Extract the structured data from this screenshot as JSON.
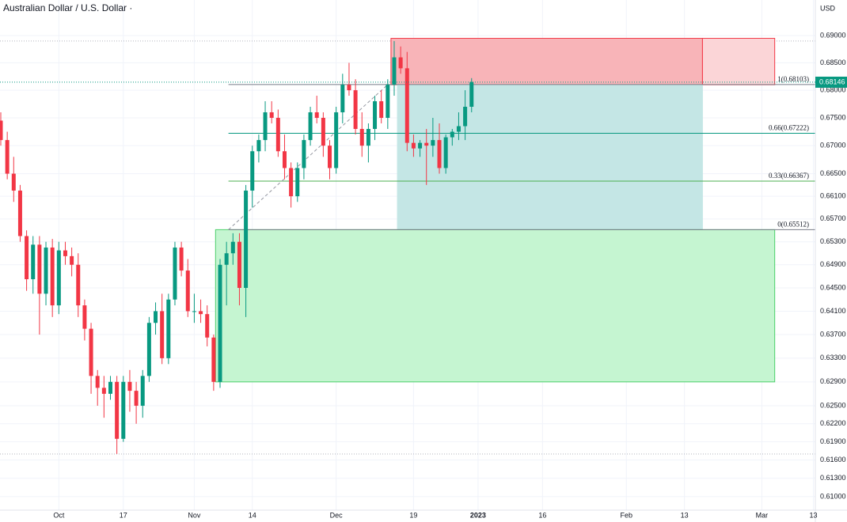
{
  "chart_data": {
    "type": "candlestick",
    "title": "Australian Dollar / U.S. Dollar ·",
    "y_unit": "USD",
    "log_scale": true,
    "grid": true,
    "up_color": "#089981",
    "down_color": "#f23645",
    "ylim": [
      0.6078,
      0.6966
    ],
    "yticks": [
      {
        "value": 0.69,
        "label": "0.69000"
      },
      {
        "value": 0.685,
        "label": "0.68500"
      },
      {
        "value": 0.68,
        "label": "0.68000"
      },
      {
        "value": 0.675,
        "label": "0.67500"
      },
      {
        "value": 0.67,
        "label": "0.67000"
      },
      {
        "value": 0.665,
        "label": "0.66500"
      },
      {
        "value": 0.661,
        "label": "0.66100"
      },
      {
        "value": 0.657,
        "label": "0.65700"
      },
      {
        "value": 0.653,
        "label": "0.65300"
      },
      {
        "value": 0.649,
        "label": "0.64900"
      },
      {
        "value": 0.645,
        "label": "0.64500"
      },
      {
        "value": 0.641,
        "label": "0.64100"
      },
      {
        "value": 0.637,
        "label": "0.63700"
      },
      {
        "value": 0.633,
        "label": "0.63300"
      },
      {
        "value": 0.629,
        "label": "0.62900"
      },
      {
        "value": 0.625,
        "label": "0.62500"
      },
      {
        "value": 0.622,
        "label": "0.62200"
      },
      {
        "value": 0.619,
        "label": "0.61900"
      },
      {
        "value": 0.616,
        "label": "0.61600"
      },
      {
        "value": 0.613,
        "label": "0.61300"
      },
      {
        "value": 0.61,
        "label": "0.61000"
      }
    ],
    "xlim": [
      0,
      126.3
    ],
    "xticks": [
      {
        "value": 9,
        "label": "Oct"
      },
      {
        "value": 19,
        "label": "17"
      },
      {
        "value": 30,
        "label": "Nov"
      },
      {
        "value": 39,
        "label": "14"
      },
      {
        "value": 52,
        "label": "Dec"
      },
      {
        "value": 64,
        "label": "19"
      },
      {
        "value": 74,
        "label": "2023"
      },
      {
        "value": 84,
        "label": "16"
      },
      {
        "value": 97,
        "label": "Feb"
      },
      {
        "value": 106,
        "label": "13"
      },
      {
        "value": 118,
        "label": "Mar"
      },
      {
        "value": 126,
        "label": "13"
      }
    ],
    "last_price": 0.68146,
    "open": [
      0.6745,
      0.671,
      0.665,
      0.662,
      0.654,
      0.6465,
      0.6525,
      0.644,
      0.652,
      0.642,
      0.6515,
      0.6505,
      0.649,
      0.642,
      0.638,
      0.63,
      0.628,
      0.627,
      0.629,
      0.6195,
      0.629,
      0.6275,
      0.625,
      0.63,
      0.639,
      0.641,
      0.633,
      0.643,
      0.652,
      0.648,
      0.641,
      0.641,
      0.6405,
      0.6365,
      0.629,
      0.649,
      0.651,
      0.653,
      0.645,
      0.662,
      0.669,
      0.671,
      0.676,
      0.675,
      0.669,
      0.666,
      0.661,
      0.666,
      0.671,
      0.676,
      0.675,
      0.67,
      0.666,
      0.676,
      0.681,
      0.68,
      0.673,
      0.67,
      0.673,
      0.678,
      0.675,
      0.681,
      0.686,
      0.684,
      0.6705,
      0.6695,
      0.6705,
      0.67,
      0.671,
      0.666,
      0.6715,
      0.6725,
      0.6735,
      0.677
    ],
    "high": [
      0.676,
      0.6725,
      0.668,
      0.663,
      0.655,
      0.654,
      0.654,
      0.653,
      0.6535,
      0.653,
      0.653,
      0.652,
      0.651,
      0.643,
      0.639,
      0.631,
      0.63,
      0.63,
      0.63,
      0.63,
      0.631,
      0.629,
      0.631,
      0.64,
      0.6425,
      0.644,
      0.644,
      0.653,
      0.653,
      0.65,
      0.644,
      0.643,
      0.642,
      0.637,
      0.65,
      0.653,
      0.6545,
      0.6545,
      0.663,
      0.67,
      0.672,
      0.678,
      0.678,
      0.6765,
      0.672,
      0.667,
      0.667,
      0.672,
      0.677,
      0.679,
      0.676,
      0.671,
      0.677,
      0.683,
      0.685,
      0.682,
      0.676,
      0.674,
      0.679,
      0.68,
      0.682,
      0.689,
      0.688,
      0.687,
      0.672,
      0.671,
      0.673,
      0.675,
      0.674,
      0.672,
      0.673,
      0.676,
      0.68,
      0.6822
    ],
    "low": [
      0.67,
      0.664,
      0.66,
      0.653,
      0.6445,
      0.644,
      0.637,
      0.642,
      0.64,
      0.6405,
      0.649,
      0.647,
      0.64,
      0.636,
      0.627,
      0.625,
      0.623,
      0.626,
      0.617,
      0.619,
      0.624,
      0.622,
      0.623,
      0.629,
      0.637,
      0.632,
      0.632,
      0.642,
      0.647,
      0.64,
      0.639,
      0.639,
      0.635,
      0.6275,
      0.628,
      0.642,
      0.649,
      0.642,
      0.64,
      0.659,
      0.667,
      0.669,
      0.674,
      0.668,
      0.664,
      0.659,
      0.66,
      0.664,
      0.67,
      0.674,
      0.668,
      0.664,
      0.665,
      0.674,
      0.679,
      0.672,
      0.668,
      0.667,
      0.671,
      0.674,
      0.673,
      0.679,
      0.683,
      0.669,
      0.668,
      0.668,
      0.663,
      0.668,
      0.665,
      0.665,
      0.67,
      0.671,
      0.671,
      0.676
    ],
    "close": [
      0.671,
      0.665,
      0.662,
      0.654,
      0.6465,
      0.6525,
      0.644,
      0.652,
      0.642,
      0.6515,
      0.6505,
      0.649,
      0.642,
      0.638,
      0.63,
      0.628,
      0.627,
      0.629,
      0.6195,
      0.629,
      0.6275,
      0.625,
      0.63,
      0.639,
      0.641,
      0.633,
      0.643,
      0.652,
      0.648,
      0.641,
      0.641,
      0.6405,
      0.6365,
      0.629,
      0.649,
      0.651,
      0.653,
      0.645,
      0.662,
      0.669,
      0.671,
      0.676,
      0.675,
      0.669,
      0.666,
      0.661,
      0.666,
      0.671,
      0.676,
      0.675,
      0.67,
      0.666,
      0.676,
      0.681,
      0.68,
      0.673,
      0.67,
      0.673,
      0.678,
      0.675,
      0.681,
      0.686,
      0.684,
      0.6705,
      0.6695,
      0.6705,
      0.67,
      0.671,
      0.666,
      0.6715,
      0.6725,
      0.6735,
      0.677,
      0.6815
    ],
    "zones": [
      {
        "top": 0.6895,
        "bottom": 0.681,
        "start": 60.5,
        "end": 108.8,
        "color": "#f8b4b8",
        "border": "#f23645"
      },
      {
        "top": 0.6895,
        "bottom": 0.681,
        "start": 108.8,
        "end": 120,
        "color": "#fbd5d7",
        "border": "#f23645"
      },
      {
        "top": 0.681,
        "bottom": 0.65512,
        "start": 61.5,
        "end": 108.8,
        "color": "#c4e6e5",
        "border": "#c4e6e5"
      },
      {
        "top": 0.65512,
        "bottom": 0.629,
        "start": 33.3,
        "end": 120,
        "color": "#c5f5d1",
        "border": "#4ccf6b"
      }
    ],
    "fib_levels": [
      {
        "price": 0.68103,
        "label": "1(0.68103)",
        "color": "#787b86"
      },
      {
        "price": 0.67222,
        "label": "0.66(0.67222)",
        "color": "#089981"
      },
      {
        "price": 0.66367,
        "label": "0.33(0.66367)",
        "color": "#4caf50"
      },
      {
        "price": 0.65512,
        "label": "0(0.65512)",
        "color": "#787b86"
      }
    ]
  }
}
